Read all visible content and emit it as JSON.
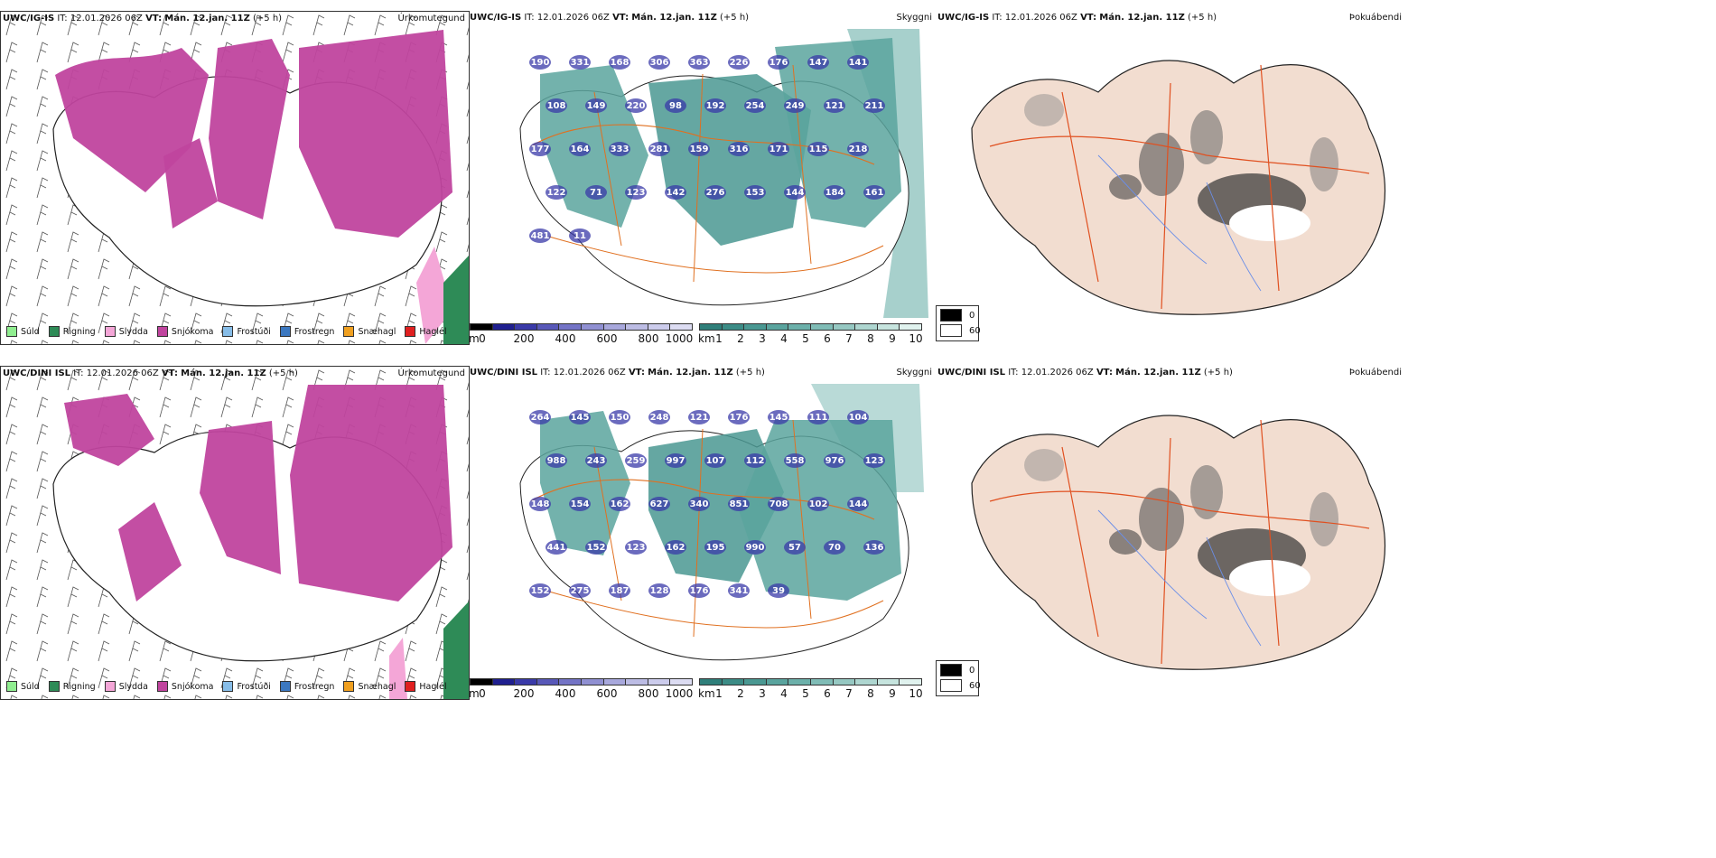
{
  "rows": [
    {
      "model": "UWC/IG-IS",
      "it": "IT: 12.01.2026 06Z",
      "vt_label": "VT:",
      "vt": "Mán. 12.jan. 11Z",
      "offset": "(+5 h)",
      "vis_values": [
        "190",
        "331",
        "168",
        "306",
        "363",
        "226",
        "176",
        "147",
        "141",
        "108",
        "149",
        "220",
        "98",
        "192",
        "254",
        "249",
        "121",
        "211",
        "177",
        "164",
        "333",
        "281",
        "159",
        "316",
        "171",
        "115",
        "218",
        "122",
        "71",
        "123",
        "142",
        "276",
        "153",
        "144",
        "184",
        "161",
        "481",
        "11"
      ]
    },
    {
      "model": "UWC/DINI ISL",
      "it": "IT: 12.01.2026 06Z",
      "vt_label": "VT:",
      "vt": "Mán. 12.jan. 11Z",
      "offset": "(+5 h)",
      "vis_values": [
        "264",
        "145",
        "150",
        "248",
        "121",
        "176",
        "145",
        "111",
        "104",
        "988",
        "243",
        "259",
        "997",
        "107",
        "112",
        "558",
        "976",
        "123",
        "148",
        "154",
        "162",
        "627",
        "340",
        "851",
        "708",
        "102",
        "144",
        "441",
        "152",
        "123",
        "162",
        "195",
        "990",
        "57",
        "70",
        "136",
        "152",
        "275",
        "187",
        "128",
        "176",
        "341",
        "39"
      ]
    }
  ],
  "panel_names": {
    "precip": "Úrkomutegund",
    "ceiling": "Skyggni",
    "fog": "Þokuábendi"
  },
  "precip_legend": [
    {
      "label": "Súld",
      "color": "#90ee90"
    },
    {
      "label": "Rigning",
      "color": "#2e8b57"
    },
    {
      "label": "Slydda",
      "color": "#f4a6d7"
    },
    {
      "label": "Snjókoma",
      "color": "#c0449e"
    },
    {
      "label": "Frostúði",
      "color": "#87bde8"
    },
    {
      "label": "Frostregn",
      "color": "#3c78c0"
    },
    {
      "label": "Snæhagl",
      "color": "#f0a020"
    },
    {
      "label": "Haglél",
      "color": "#e02020"
    }
  ],
  "ceiling_scale": {
    "unit": "m",
    "ticks": [
      "0",
      "200",
      "400",
      "600",
      "800",
      "1000"
    ],
    "colors": [
      "#000000",
      "#1f1f8f",
      "#3a3aa8",
      "#5858b8",
      "#7474c6",
      "#9090d2",
      "#a8a8dc",
      "#bcbce4",
      "#ccccec",
      "#dcdcf2"
    ]
  },
  "vis_scale": {
    "unit": "km",
    "ticks": [
      "1",
      "2",
      "3",
      "4",
      "5",
      "6",
      "7",
      "8",
      "9",
      "10"
    ],
    "colors": [
      "#2f7f7a",
      "#3c8c86",
      "#4a9892",
      "#5aa49e",
      "#6cb0aa",
      "#80bcb6",
      "#96c8c2",
      "#aed6d0",
      "#c6e4de",
      "#e0f2ee"
    ]
  },
  "fog_legend": [
    {
      "label": "0",
      "color": "#000000"
    },
    {
      "label": "60",
      "color": "#ffffff"
    }
  ]
}
